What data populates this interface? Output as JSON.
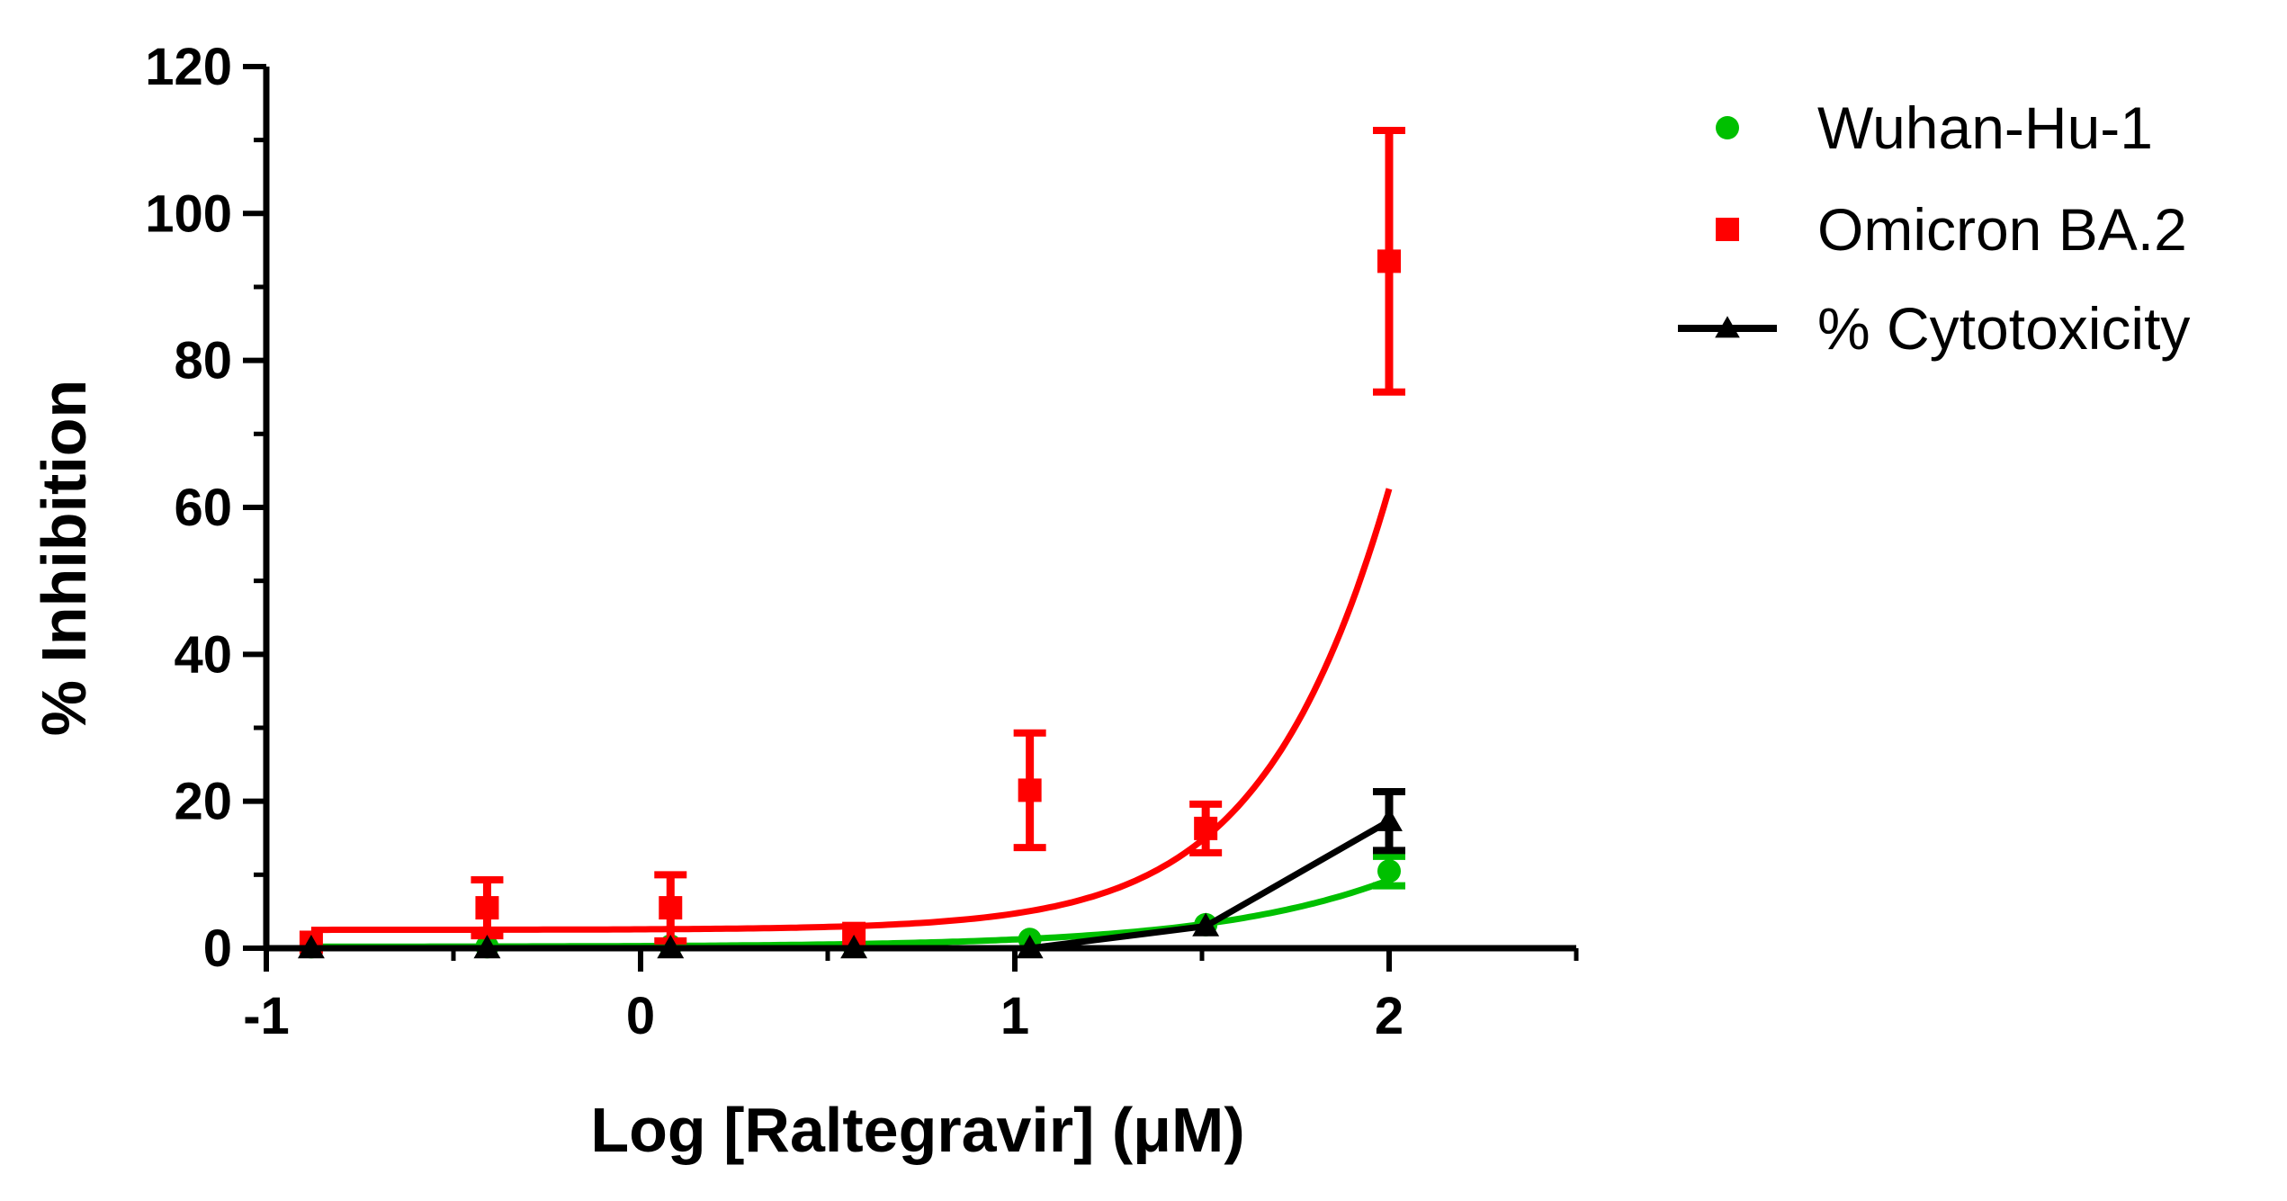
{
  "chart_data": {
    "type": "scatter",
    "title": "",
    "xlabel": "Log [Raltegravir] (μM)",
    "ylabel": "% Inhibition",
    "xlim": [
      -1,
      2.5
    ],
    "ylim": [
      0,
      120
    ],
    "x_ticks": [
      "-1",
      "0",
      "1",
      "2"
    ],
    "y_ticks": [
      "0",
      "20",
      "40",
      "60",
      "80",
      "100",
      "120"
    ],
    "grid": false,
    "legend_position": "top-right",
    "series": [
      {
        "name": "Wuhan-Hu-1",
        "color": "#00c000",
        "marker": "circle",
        "fit": "curve",
        "x": [
          -0.88,
          -0.41,
          0.08,
          0.57,
          1.04,
          1.51,
          2.0
        ],
        "y": [
          0.2,
          0.2,
          0.3,
          0.3,
          1.2,
          3.2,
          10.5
        ],
        "error": [
          0,
          0,
          0,
          0,
          0,
          0,
          2.0
        ],
        "curve": {
          "bottom": 0.2,
          "top": 100,
          "log_ec50": 3.0,
          "hill": 1.0
        }
      },
      {
        "name": "Omicron BA.2",
        "color": "#ff0000",
        "marker": "square",
        "fit": "curve",
        "x": [
          -0.88,
          -0.41,
          0.08,
          0.57,
          1.04,
          1.51,
          2.0
        ],
        "y": [
          0.8,
          5.5,
          5.5,
          2.0,
          21.5,
          16.3,
          93.5
        ],
        "error": [
          0,
          3.8,
          4.5,
          0,
          7.8,
          3.3,
          17.8
        ],
        "curve": {
          "bottom": 2.5,
          "top": 400,
          "log_ec50": 2.5,
          "hill": 1.5
        }
      },
      {
        "name": "% Cytotoxicity",
        "color": "#000000",
        "marker": "triangle",
        "fit": "line",
        "x": [
          -0.88,
          -0.41,
          0.08,
          0.57,
          1.04,
          1.51,
          2.0
        ],
        "y": [
          0,
          0,
          0,
          0,
          0,
          3.0,
          17.3
        ],
        "error": [
          0,
          0,
          0,
          0,
          0,
          0,
          4.0
        ]
      }
    ]
  }
}
